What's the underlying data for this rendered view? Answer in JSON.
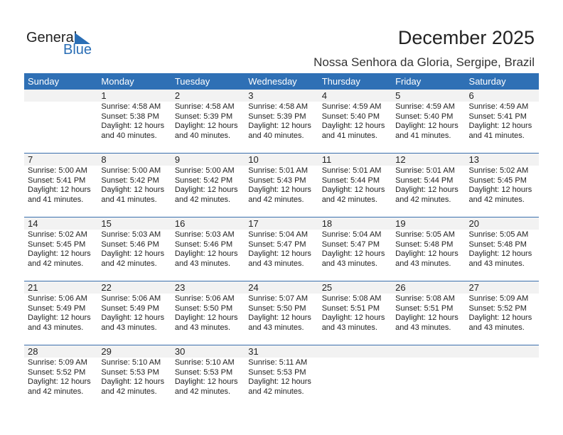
{
  "logo": {
    "word1": "General",
    "word2": "Blue"
  },
  "title": "December 2025",
  "subtitle": "Nossa Senhora da Gloria, Sergipe, Brazil",
  "colors": {
    "header": "#2f70b5",
    "date_band": "#f2f2f2",
    "separator": "#3a6fad"
  },
  "weekdays": [
    "Sunday",
    "Monday",
    "Tuesday",
    "Wednesday",
    "Thursday",
    "Friday",
    "Saturday"
  ],
  "weeks": [
    [
      null,
      {
        "day": "1",
        "sunrise": "Sunrise: 4:58 AM",
        "sunset": "Sunset: 5:38 PM",
        "daylight": "Daylight: 12 hours",
        "minutes": "and 40 minutes."
      },
      {
        "day": "2",
        "sunrise": "Sunrise: 4:58 AM",
        "sunset": "Sunset: 5:39 PM",
        "daylight": "Daylight: 12 hours",
        "minutes": "and 40 minutes."
      },
      {
        "day": "3",
        "sunrise": "Sunrise: 4:58 AM",
        "sunset": "Sunset: 5:39 PM",
        "daylight": "Daylight: 12 hours",
        "minutes": "and 40 minutes."
      },
      {
        "day": "4",
        "sunrise": "Sunrise: 4:59 AM",
        "sunset": "Sunset: 5:40 PM",
        "daylight": "Daylight: 12 hours",
        "minutes": "and 41 minutes."
      },
      {
        "day": "5",
        "sunrise": "Sunrise: 4:59 AM",
        "sunset": "Sunset: 5:40 PM",
        "daylight": "Daylight: 12 hours",
        "minutes": "and 41 minutes."
      },
      {
        "day": "6",
        "sunrise": "Sunrise: 4:59 AM",
        "sunset": "Sunset: 5:41 PM",
        "daylight": "Daylight: 12 hours",
        "minutes": "and 41 minutes."
      }
    ],
    [
      {
        "day": "7",
        "sunrise": "Sunrise: 5:00 AM",
        "sunset": "Sunset: 5:41 PM",
        "daylight": "Daylight: 12 hours",
        "minutes": "and 41 minutes."
      },
      {
        "day": "8",
        "sunrise": "Sunrise: 5:00 AM",
        "sunset": "Sunset: 5:42 PM",
        "daylight": "Daylight: 12 hours",
        "minutes": "and 41 minutes."
      },
      {
        "day": "9",
        "sunrise": "Sunrise: 5:00 AM",
        "sunset": "Sunset: 5:42 PM",
        "daylight": "Daylight: 12 hours",
        "minutes": "and 42 minutes."
      },
      {
        "day": "10",
        "sunrise": "Sunrise: 5:01 AM",
        "sunset": "Sunset: 5:43 PM",
        "daylight": "Daylight: 12 hours",
        "minutes": "and 42 minutes."
      },
      {
        "day": "11",
        "sunrise": "Sunrise: 5:01 AM",
        "sunset": "Sunset: 5:44 PM",
        "daylight": "Daylight: 12 hours",
        "minutes": "and 42 minutes."
      },
      {
        "day": "12",
        "sunrise": "Sunrise: 5:01 AM",
        "sunset": "Sunset: 5:44 PM",
        "daylight": "Daylight: 12 hours",
        "minutes": "and 42 minutes."
      },
      {
        "day": "13",
        "sunrise": "Sunrise: 5:02 AM",
        "sunset": "Sunset: 5:45 PM",
        "daylight": "Daylight: 12 hours",
        "minutes": "and 42 minutes."
      }
    ],
    [
      {
        "day": "14",
        "sunrise": "Sunrise: 5:02 AM",
        "sunset": "Sunset: 5:45 PM",
        "daylight": "Daylight: 12 hours",
        "minutes": "and 42 minutes."
      },
      {
        "day": "15",
        "sunrise": "Sunrise: 5:03 AM",
        "sunset": "Sunset: 5:46 PM",
        "daylight": "Daylight: 12 hours",
        "minutes": "and 42 minutes."
      },
      {
        "day": "16",
        "sunrise": "Sunrise: 5:03 AM",
        "sunset": "Sunset: 5:46 PM",
        "daylight": "Daylight: 12 hours",
        "minutes": "and 43 minutes."
      },
      {
        "day": "17",
        "sunrise": "Sunrise: 5:04 AM",
        "sunset": "Sunset: 5:47 PM",
        "daylight": "Daylight: 12 hours",
        "minutes": "and 43 minutes."
      },
      {
        "day": "18",
        "sunrise": "Sunrise: 5:04 AM",
        "sunset": "Sunset: 5:47 PM",
        "daylight": "Daylight: 12 hours",
        "minutes": "and 43 minutes."
      },
      {
        "day": "19",
        "sunrise": "Sunrise: 5:05 AM",
        "sunset": "Sunset: 5:48 PM",
        "daylight": "Daylight: 12 hours",
        "minutes": "and 43 minutes."
      },
      {
        "day": "20",
        "sunrise": "Sunrise: 5:05 AM",
        "sunset": "Sunset: 5:48 PM",
        "daylight": "Daylight: 12 hours",
        "minutes": "and 43 minutes."
      }
    ],
    [
      {
        "day": "21",
        "sunrise": "Sunrise: 5:06 AM",
        "sunset": "Sunset: 5:49 PM",
        "daylight": "Daylight: 12 hours",
        "minutes": "and 43 minutes."
      },
      {
        "day": "22",
        "sunrise": "Sunrise: 5:06 AM",
        "sunset": "Sunset: 5:49 PM",
        "daylight": "Daylight: 12 hours",
        "minutes": "and 43 minutes."
      },
      {
        "day": "23",
        "sunrise": "Sunrise: 5:06 AM",
        "sunset": "Sunset: 5:50 PM",
        "daylight": "Daylight: 12 hours",
        "minutes": "and 43 minutes."
      },
      {
        "day": "24",
        "sunrise": "Sunrise: 5:07 AM",
        "sunset": "Sunset: 5:50 PM",
        "daylight": "Daylight: 12 hours",
        "minutes": "and 43 minutes."
      },
      {
        "day": "25",
        "sunrise": "Sunrise: 5:08 AM",
        "sunset": "Sunset: 5:51 PM",
        "daylight": "Daylight: 12 hours",
        "minutes": "and 43 minutes."
      },
      {
        "day": "26",
        "sunrise": "Sunrise: 5:08 AM",
        "sunset": "Sunset: 5:51 PM",
        "daylight": "Daylight: 12 hours",
        "minutes": "and 43 minutes."
      },
      {
        "day": "27",
        "sunrise": "Sunrise: 5:09 AM",
        "sunset": "Sunset: 5:52 PM",
        "daylight": "Daylight: 12 hours",
        "minutes": "and 43 minutes."
      }
    ],
    [
      {
        "day": "28",
        "sunrise": "Sunrise: 5:09 AM",
        "sunset": "Sunset: 5:52 PM",
        "daylight": "Daylight: 12 hours",
        "minutes": "and 42 minutes."
      },
      {
        "day": "29",
        "sunrise": "Sunrise: 5:10 AM",
        "sunset": "Sunset: 5:53 PM",
        "daylight": "Daylight: 12 hours",
        "minutes": "and 42 minutes."
      },
      {
        "day": "30",
        "sunrise": "Sunrise: 5:10 AM",
        "sunset": "Sunset: 5:53 PM",
        "daylight": "Daylight: 12 hours",
        "minutes": "and 42 minutes."
      },
      {
        "day": "31",
        "sunrise": "Sunrise: 5:11 AM",
        "sunset": "Sunset: 5:53 PM",
        "daylight": "Daylight: 12 hours",
        "minutes": "and 42 minutes."
      },
      null,
      null,
      null
    ]
  ]
}
